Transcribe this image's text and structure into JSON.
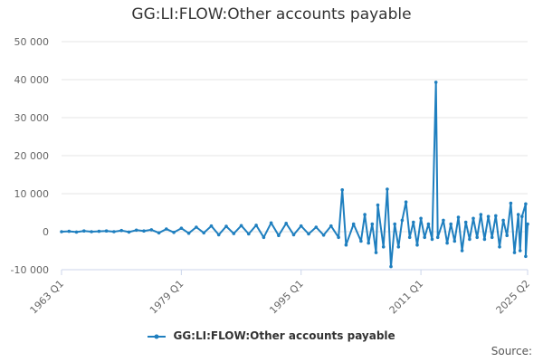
{
  "chart_data": {
    "type": "line",
    "title": "GG:LI:FLOW:Other accounts payable",
    "xlabel": "",
    "ylabel": "",
    "ylim": [
      -10000,
      50000
    ],
    "yticks": [
      -10000,
      0,
      10000,
      20000,
      30000,
      40000,
      50000
    ],
    "ytick_labels": [
      "-10 000",
      "0",
      "10 000",
      "20 000",
      "30 000",
      "40 000",
      "50 000"
    ],
    "xlim": [
      "1963 Q1",
      "2025 Q2"
    ],
    "xticks": [
      "1963 Q1",
      "1979 Q1",
      "1995 Q1",
      "2011 Q1",
      "2025 Q2"
    ],
    "grid": true,
    "legend_position": "bottom",
    "series": [
      {
        "name": "GG:LI:FLOW:Other accounts payable",
        "color": "#1f7fbf",
        "points": [
          [
            "1963 Q1",
            0
          ],
          [
            "1964 Q1",
            100
          ],
          [
            "1965 Q1",
            -100
          ],
          [
            "1966 Q1",
            200
          ],
          [
            "1967 Q1",
            0
          ],
          [
            "1968 Q1",
            100
          ],
          [
            "1969 Q1",
            200
          ],
          [
            "1970 Q1",
            0
          ],
          [
            "1971 Q1",
            300
          ],
          [
            "1972 Q1",
            -100
          ],
          [
            "1973 Q1",
            400
          ],
          [
            "1974 Q1",
            200
          ],
          [
            "1975 Q1",
            500
          ],
          [
            "1976 Q1",
            -300
          ],
          [
            "1977 Q1",
            700
          ],
          [
            "1978 Q1",
            -200
          ],
          [
            "1979 Q1",
            900
          ],
          [
            "1980 Q1",
            -400
          ],
          [
            "1981 Q1",
            1200
          ],
          [
            "1982 Q1",
            -300
          ],
          [
            "1983 Q1",
            1500
          ],
          [
            "1984 Q1",
            -800
          ],
          [
            "1985 Q1",
            1400
          ],
          [
            "1986 Q1",
            -500
          ],
          [
            "1987 Q1",
            1600
          ],
          [
            "1988 Q1",
            -600
          ],
          [
            "1989 Q1",
            1700
          ],
          [
            "1990 Q1",
            -1500
          ],
          [
            "1991 Q1",
            2300
          ],
          [
            "1992 Q1",
            -1000
          ],
          [
            "1993 Q1",
            2200
          ],
          [
            "1994 Q1",
            -800
          ],
          [
            "1995 Q1",
            1500
          ],
          [
            "1996 Q1",
            -600
          ],
          [
            "1997 Q1",
            1200
          ],
          [
            "1998 Q1",
            -900
          ],
          [
            "1999 Q1",
            1500
          ],
          [
            "2000 Q1",
            -1500
          ],
          [
            "2000 Q3",
            11000
          ],
          [
            "2001 Q1",
            -3500
          ],
          [
            "2002 Q1",
            2000
          ],
          [
            "2003 Q1",
            -2500
          ],
          [
            "2003 Q3",
            4500
          ],
          [
            "2004 Q1",
            -3000
          ],
          [
            "2004 Q3",
            2000
          ],
          [
            "2005 Q1",
            -5500
          ],
          [
            "2005 Q2",
            7000
          ],
          [
            "2006 Q1",
            -4000
          ],
          [
            "2006 Q3",
            11200
          ],
          [
            "2007 Q1",
            -9200
          ],
          [
            "2007 Q3",
            2000
          ],
          [
            "2008 Q1",
            -4000
          ],
          [
            "2008 Q3",
            3000
          ],
          [
            "2009 Q1",
            7800
          ],
          [
            "2009 Q3",
            -1500
          ],
          [
            "2010 Q1",
            2500
          ],
          [
            "2010 Q3",
            -3500
          ],
          [
            "2011 Q1",
            3500
          ],
          [
            "2011 Q3",
            -1500
          ],
          [
            "2012 Q1",
            2000
          ],
          [
            "2012 Q3",
            -2000
          ],
          [
            "2013 Q1",
            39300
          ],
          [
            "2013 Q2",
            -1500
          ],
          [
            "2014 Q1",
            3000
          ],
          [
            "2014 Q3",
            -3000
          ],
          [
            "2015 Q1",
            2000
          ],
          [
            "2015 Q3",
            -2500
          ],
          [
            "2016 Q1",
            3800
          ],
          [
            "2016 Q3",
            -5000
          ],
          [
            "2017 Q1",
            2500
          ],
          [
            "2017 Q3",
            -2000
          ],
          [
            "2018 Q1",
            3500
          ],
          [
            "2018 Q3",
            -1500
          ],
          [
            "2019 Q1",
            4500
          ],
          [
            "2019 Q3",
            -2000
          ],
          [
            "2020 Q1",
            4000
          ],
          [
            "2020 Q3",
            -1500
          ],
          [
            "2021 Q1",
            4200
          ],
          [
            "2021 Q3",
            -4000
          ],
          [
            "2022 Q1",
            3000
          ],
          [
            "2022 Q3",
            -1000
          ],
          [
            "2023 Q1",
            7500
          ],
          [
            "2023 Q3",
            -5500
          ],
          [
            "2024 Q1",
            4500
          ],
          [
            "2024 Q2",
            -5000
          ],
          [
            "2024 Q3",
            4000
          ],
          [
            "2025 Q1",
            7300
          ],
          [
            "2025 Q1",
            -6500
          ],
          [
            "2025 Q2",
            2000
          ]
        ]
      }
    ]
  },
  "footer": {
    "source_label": "Source:"
  }
}
